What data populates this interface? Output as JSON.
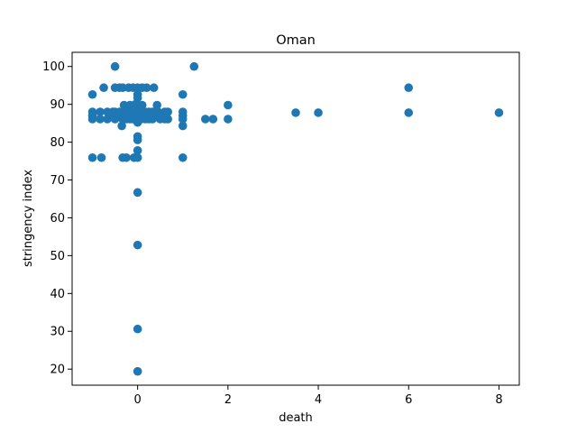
{
  "chart_data": {
    "type": "scatter",
    "title": "Oman",
    "xlabel": "death",
    "ylabel": "stringency index",
    "xlim": [
      -1.45,
      8.45
    ],
    "ylim": [
      15.75,
      103.75
    ],
    "xticks": [
      "0",
      "2",
      "4",
      "6",
      "8"
    ],
    "yticks": [
      "20",
      "30",
      "40",
      "50",
      "60",
      "70",
      "80",
      "90",
      "100"
    ],
    "grid": false,
    "legend": "none",
    "marker_color": "#1f77b4",
    "points": [
      {
        "x": -1,
        "y": 92.6
      },
      {
        "x": -1,
        "y": 88.0
      },
      {
        "x": -1,
        "y": 87.0
      },
      {
        "x": -1,
        "y": 86.1
      },
      {
        "x": -1,
        "y": 75.9
      },
      {
        "x": -0.83,
        "y": 88.0
      },
      {
        "x": -0.83,
        "y": 86.1
      },
      {
        "x": -0.8,
        "y": 75.9
      },
      {
        "x": -0.75,
        "y": 94.4
      },
      {
        "x": -0.67,
        "y": 88.0
      },
      {
        "x": -0.67,
        "y": 86.1
      },
      {
        "x": -0.6,
        "y": 87.0
      },
      {
        "x": -0.55,
        "y": 88.0
      },
      {
        "x": -0.5,
        "y": 86.1
      },
      {
        "x": -0.5,
        "y": 88.0
      },
      {
        "x": -0.5,
        "y": 94.4
      },
      {
        "x": -0.5,
        "y": 100.0
      },
      {
        "x": -0.4,
        "y": 94.4
      },
      {
        "x": -0.4,
        "y": 87.0
      },
      {
        "x": -0.4,
        "y": 88.0
      },
      {
        "x": -0.35,
        "y": 84.3
      },
      {
        "x": -0.33,
        "y": 86.1
      },
      {
        "x": -0.33,
        "y": 94.4
      },
      {
        "x": -0.33,
        "y": 75.9
      },
      {
        "x": -0.3,
        "y": 89.8
      },
      {
        "x": -0.25,
        "y": 88.0
      },
      {
        "x": -0.25,
        "y": 86.1
      },
      {
        "x": -0.25,
        "y": 75.9
      },
      {
        "x": -0.2,
        "y": 94.4
      },
      {
        "x": -0.2,
        "y": 87.0
      },
      {
        "x": -0.17,
        "y": 86.1
      },
      {
        "x": -0.17,
        "y": 89.8
      },
      {
        "x": -0.15,
        "y": 88.0
      },
      {
        "x": -0.1,
        "y": 94.4
      },
      {
        "x": -0.1,
        "y": 86.1
      },
      {
        "x": -0.1,
        "y": 87.0
      },
      {
        "x": -0.08,
        "y": 75.9
      },
      {
        "x": -0.05,
        "y": 88.0
      },
      {
        "x": -0.05,
        "y": 90.0
      },
      {
        "x": 0,
        "y": 94.4
      },
      {
        "x": 0,
        "y": 92.6
      },
      {
        "x": 0,
        "y": 91.7
      },
      {
        "x": 0,
        "y": 89.8
      },
      {
        "x": 0,
        "y": 88.0
      },
      {
        "x": 0,
        "y": 87.0
      },
      {
        "x": 0,
        "y": 86.1
      },
      {
        "x": 0,
        "y": 85.2
      },
      {
        "x": 0,
        "y": 81.5
      },
      {
        "x": 0,
        "y": 80.6
      },
      {
        "x": 0,
        "y": 77.8
      },
      {
        "x": 0,
        "y": 75.9
      },
      {
        "x": 0,
        "y": 66.7
      },
      {
        "x": 0,
        "y": 52.8
      },
      {
        "x": 0,
        "y": 30.6
      },
      {
        "x": 0,
        "y": 19.4
      },
      {
        "x": 0.08,
        "y": 88.0
      },
      {
        "x": 0.08,
        "y": 86.1
      },
      {
        "x": 0.1,
        "y": 94.4
      },
      {
        "x": 0.1,
        "y": 89.8
      },
      {
        "x": 0.14,
        "y": 87.0
      },
      {
        "x": 0.17,
        "y": 88.0
      },
      {
        "x": 0.17,
        "y": 86.1
      },
      {
        "x": 0.2,
        "y": 94.4
      },
      {
        "x": 0.2,
        "y": 87.0
      },
      {
        "x": 0.25,
        "y": 88.0
      },
      {
        "x": 0.25,
        "y": 86.1
      },
      {
        "x": 0.29,
        "y": 87.0
      },
      {
        "x": 0.33,
        "y": 88.0
      },
      {
        "x": 0.33,
        "y": 86.1
      },
      {
        "x": 0.36,
        "y": 94.4
      },
      {
        "x": 0.4,
        "y": 87.0
      },
      {
        "x": 0.43,
        "y": 89.8
      },
      {
        "x": 0.45,
        "y": 88.0
      },
      {
        "x": 0.5,
        "y": 86.1
      },
      {
        "x": 0.55,
        "y": 87.0
      },
      {
        "x": 0.6,
        "y": 88.0
      },
      {
        "x": 0.6,
        "y": 86.1
      },
      {
        "x": 0.67,
        "y": 88.0
      },
      {
        "x": 0.67,
        "y": 86.1
      },
      {
        "x": 1,
        "y": 92.6
      },
      {
        "x": 1,
        "y": 88.0
      },
      {
        "x": 1,
        "y": 87.0
      },
      {
        "x": 1,
        "y": 86.1
      },
      {
        "x": 1,
        "y": 84.3
      },
      {
        "x": 1,
        "y": 75.9
      },
      {
        "x": 1.25,
        "y": 100.0
      },
      {
        "x": 1.5,
        "y": 86.1
      },
      {
        "x": 1.67,
        "y": 86.1
      },
      {
        "x": 2,
        "y": 89.8
      },
      {
        "x": 2,
        "y": 86.1
      },
      {
        "x": 3.5,
        "y": 87.8
      },
      {
        "x": 4,
        "y": 87.8
      },
      {
        "x": 6,
        "y": 94.4
      },
      {
        "x": 6,
        "y": 87.8
      },
      {
        "x": 8,
        "y": 87.8
      }
    ]
  }
}
